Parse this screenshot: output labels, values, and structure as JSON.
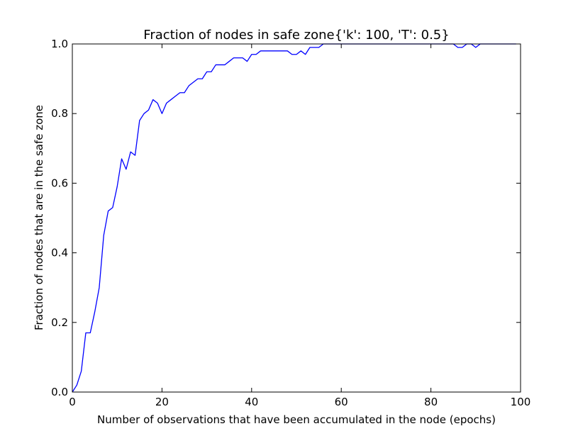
{
  "chart_data": {
    "type": "line",
    "title": "Fraction of nodes in safe zone{'k': 100, 'T': 0.5}",
    "xlabel": "Number of observations that have been accumulated in the node (epochs)",
    "ylabel": "Fraction of nodes that are in the safe zone",
    "xlim": [
      0,
      100
    ],
    "ylim": [
      0.0,
      1.0
    ],
    "xticks": [
      "0",
      "20",
      "40",
      "60",
      "80",
      "100"
    ],
    "yticks": [
      "0.0",
      "0.2",
      "0.4",
      "0.6",
      "0.8",
      "1.0"
    ],
    "grid": false,
    "line_color": "#0000ff",
    "series": [
      {
        "x": [
          0,
          1,
          2,
          3,
          4,
          5,
          6,
          7,
          8,
          9,
          10,
          11,
          12,
          13,
          14,
          15,
          16,
          17,
          18,
          19,
          20,
          21,
          22,
          23,
          24,
          25,
          26,
          27,
          28,
          29,
          30,
          31,
          32,
          33,
          34,
          35,
          36,
          37,
          38,
          39,
          40,
          41,
          42,
          43,
          44,
          45,
          46,
          47,
          48,
          49,
          50,
          51,
          52,
          53,
          54,
          55,
          56,
          57,
          58,
          59,
          60,
          61,
          62,
          63,
          64,
          65,
          66,
          67,
          68,
          69,
          70,
          71,
          72,
          73,
          74,
          75,
          76,
          77,
          78,
          79,
          80,
          81,
          82,
          83,
          84,
          85,
          86,
          87,
          88,
          89,
          90,
          91,
          92,
          93,
          94,
          95,
          96,
          97,
          98,
          99
        ],
        "y": [
          0.0,
          0.02,
          0.06,
          0.17,
          0.17,
          0.23,
          0.3,
          0.45,
          0.52,
          0.53,
          0.59,
          0.67,
          0.64,
          0.69,
          0.68,
          0.78,
          0.8,
          0.81,
          0.84,
          0.83,
          0.8,
          0.83,
          0.84,
          0.85,
          0.86,
          0.86,
          0.88,
          0.89,
          0.9,
          0.9,
          0.92,
          0.92,
          0.94,
          0.94,
          0.94,
          0.95,
          0.96,
          0.96,
          0.96,
          0.95,
          0.97,
          0.97,
          0.98,
          0.98,
          0.98,
          0.98,
          0.98,
          0.98,
          0.98,
          0.97,
          0.97,
          0.98,
          0.97,
          0.99,
          0.99,
          0.99,
          1.0,
          1.0,
          1.0,
          1.0,
          1.0,
          1.0,
          1.0,
          1.0,
          1.0,
          1.0,
          1.0,
          1.0,
          1.0,
          1.0,
          1.0,
          1.0,
          1.0,
          1.0,
          1.0,
          1.0,
          1.0,
          1.0,
          1.0,
          1.0,
          1.0,
          1.0,
          1.0,
          1.0,
          1.0,
          1.0,
          0.99,
          0.99,
          1.0,
          1.0,
          0.99,
          1.0,
          1.0,
          1.0,
          1.0,
          1.0,
          1.0,
          1.0,
          1.0,
          1.0
        ]
      }
    ]
  }
}
